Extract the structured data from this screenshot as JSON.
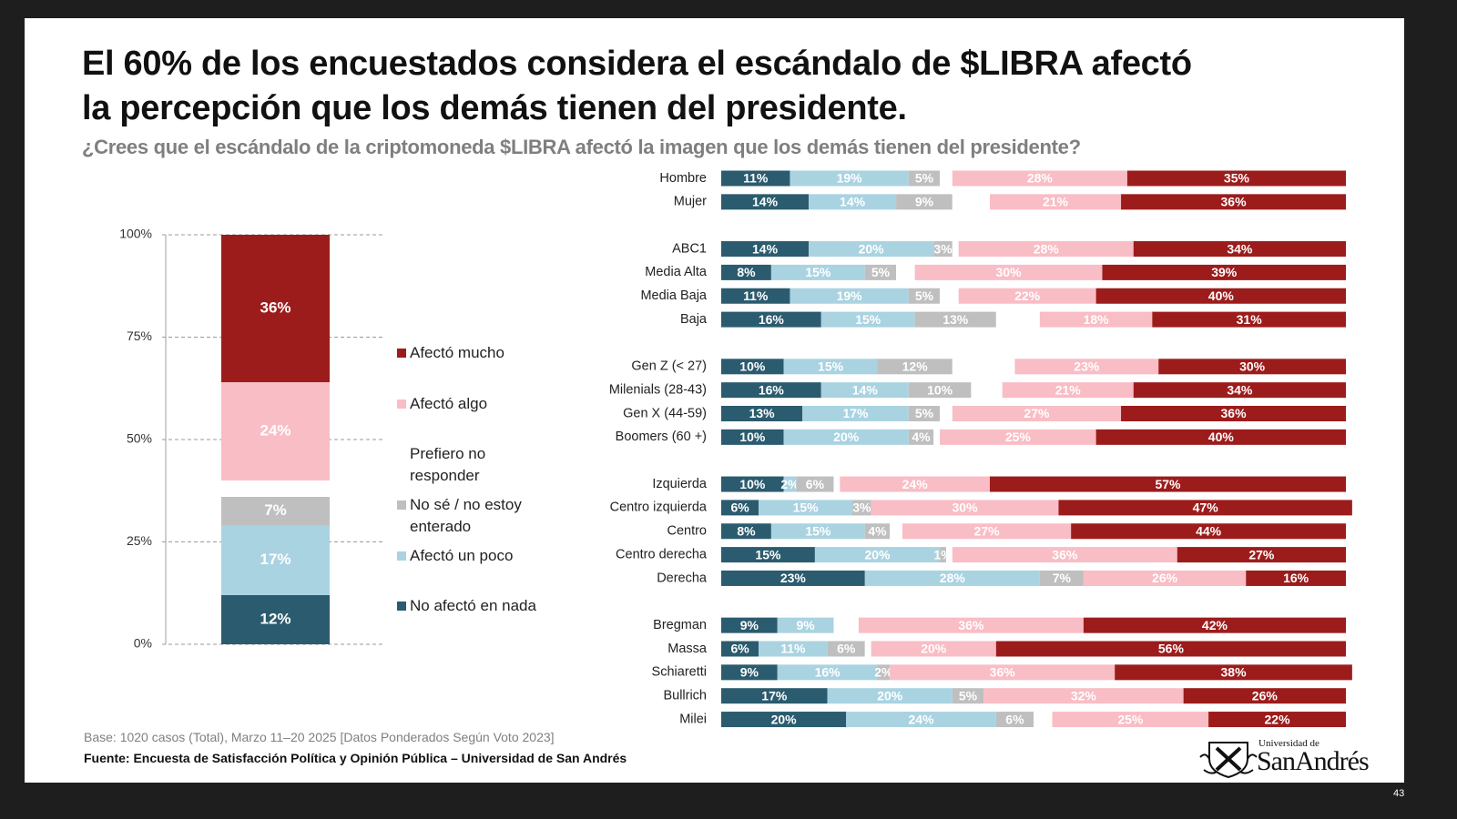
{
  "header": {
    "title": "El 60% de los encuestados considera el escándalo de $LIBRA afectó\nla percepción que los demás tienen del presidente.",
    "subtitle": "¿Crees que el escándalo de la criptomoneda $LIBRA afectó la imagen que los demás tienen del presidente?"
  },
  "chart_data": [
    {
      "type": "stacked_bar",
      "categories": [
        null
      ],
      "ylim": [
        0,
        100
      ],
      "yticks": [
        {
          "value": 0,
          "label": "0%"
        },
        {
          "value": 25,
          "label": "25%"
        },
        {
          "value": 50,
          "label": "50%"
        },
        {
          "value": 75,
          "label": "75%"
        },
        {
          "value": 100,
          "label": "100%"
        }
      ],
      "grid": true,
      "legend": "right",
      "series": [
        {
          "name": "No afectó en nada",
          "color": "#2b5b6e",
          "values": [
            12
          ],
          "value_labels": [
            "12%"
          ]
        },
        {
          "name": "Afectó un poco",
          "color": "#aad3e1",
          "values": [
            17
          ],
          "value_labels": [
            "17%"
          ]
        },
        {
          "name": "No sé / no estoy enterado",
          "color": "#bfbfbf",
          "values": [
            7
          ],
          "value_labels": [
            "7%"
          ]
        },
        {
          "name": "Prefiero no responder",
          "color": "#ffffff",
          "values": [
            4
          ]
        },
        {
          "name": "Afectó algo",
          "color": "#f9bdc5",
          "values": [
            24
          ],
          "value_labels": [
            "24%"
          ]
        },
        {
          "name": "Afectó mucho",
          "color": "#9c1c1c",
          "values": [
            36
          ],
          "value_labels": [
            "36%"
          ]
        }
      ]
    },
    {
      "type": "stacked_barh",
      "xlim": [
        0,
        100
      ],
      "categories": [
        "Hombre",
        "Mujer",
        null,
        "ABC1",
        "Media Alta",
        "Media Baja",
        "Baja",
        null,
        "Gen Z (< 27)",
        "Milenials (28-43)",
        "Gen X (44-59)",
        "Boomers (60 +)",
        null,
        "Izquierda",
        "Centro izquierda",
        "Centro",
        "Centro derecha",
        "Derecha",
        null,
        "Bregman",
        "Massa",
        "Schiaretti",
        "Bullrich",
        "Milei"
      ],
      "series": [
        {
          "color": "#2b5b6e",
          "values": [
            11,
            14,
            null,
            14,
            8,
            11,
            16,
            null,
            10,
            16,
            13,
            10,
            null,
            10,
            6,
            8,
            15,
            23,
            null,
            9,
            6,
            9,
            17,
            20
          ],
          "value_labels": [
            "11%",
            "14%",
            null,
            "14%",
            "8%",
            "11%",
            "16%",
            null,
            "10%",
            "16%",
            "13%",
            "10%",
            null,
            "10%",
            "6%",
            "8%",
            "15%",
            "23%",
            null,
            "9%",
            "6%",
            "9%",
            "17%",
            "20%"
          ]
        },
        {
          "color": "#aad3e1",
          "values": [
            19,
            14,
            null,
            20,
            15,
            19,
            15,
            null,
            15,
            14,
            17,
            20,
            null,
            2,
            15,
            15,
            20,
            28,
            null,
            9,
            11,
            16,
            20,
            24
          ],
          "value_labels": [
            "19%",
            "14%",
            null,
            "20%",
            "15%",
            "19%",
            "15%",
            null,
            "15%",
            "14%",
            "17%",
            "20%",
            null,
            "2%",
            "15%",
            "15%",
            "20%",
            "28%",
            null,
            "9%",
            "11%",
            "16%",
            "20%",
            "24%"
          ]
        },
        {
          "color": "#bfbfbf",
          "values": [
            5,
            9,
            null,
            3,
            5,
            5,
            13,
            null,
            12,
            10,
            5,
            4,
            null,
            6,
            3,
            4,
            1,
            7,
            null,
            null,
            6,
            2,
            5,
            6
          ],
          "value_labels": [
            "5%",
            "9%",
            null,
            "3%",
            "5%",
            "5%",
            "13%",
            null,
            "12%",
            "10%",
            "5%",
            "4%",
            null,
            "6%",
            "3%",
            "4%",
            "1%",
            "7%",
            null,
            null,
            "6%",
            "2%",
            "5%",
            "6%"
          ]
        },
        {
          "color": "#ffffff",
          "values": [
            2,
            6,
            null,
            1,
            3,
            3,
            7,
            null,
            10,
            5,
            2,
            1,
            null,
            1,
            0,
            2,
            1,
            0,
            null,
            4,
            1,
            0,
            0,
            3
          ]
        },
        {
          "color": "#f9bdc5",
          "values": [
            28,
            21,
            null,
            28,
            30,
            22,
            18,
            null,
            23,
            21,
            27,
            25,
            null,
            24,
            30,
            27,
            36,
            26,
            null,
            36,
            20,
            36,
            32,
            25
          ],
          "value_labels": [
            "28%",
            "21%",
            null,
            "28%",
            "30%",
            "22%",
            "18%",
            null,
            "23%",
            "21%",
            "27%",
            "25%",
            null,
            "24%",
            "30%",
            "27%",
            "36%",
            "26%",
            null,
            "36%",
            "20%",
            "36%",
            "32%",
            "25%"
          ]
        },
        {
          "color": "#9c1c1c",
          "values": [
            35,
            36,
            null,
            34,
            39,
            40,
            31,
            null,
            30,
            34,
            36,
            40,
            null,
            57,
            47,
            44,
            27,
            16,
            null,
            42,
            56,
            38,
            26,
            22
          ],
          "value_labels": [
            "35%",
            "36%",
            null,
            "34%",
            "39%",
            "40%",
            "31%",
            null,
            "30%",
            "34%",
            "36%",
            "40%",
            null,
            "57%",
            "47%",
            "44%",
            "27%",
            "16%",
            null,
            "42%",
            "56%",
            "38%",
            "26%",
            "22%"
          ]
        }
      ]
    }
  ],
  "footer": {
    "base": "Base: 1020 casos (Total), Marzo 11–20 2025 [Datos Ponderados Según Voto 2023]",
    "source": "Fuente: Encuesta de Satisfacción Política y Opinión Pública – Universidad de San Andrés",
    "page": "43"
  },
  "logo": {
    "line1": "Universidad de",
    "line2": "SanAndrés"
  }
}
